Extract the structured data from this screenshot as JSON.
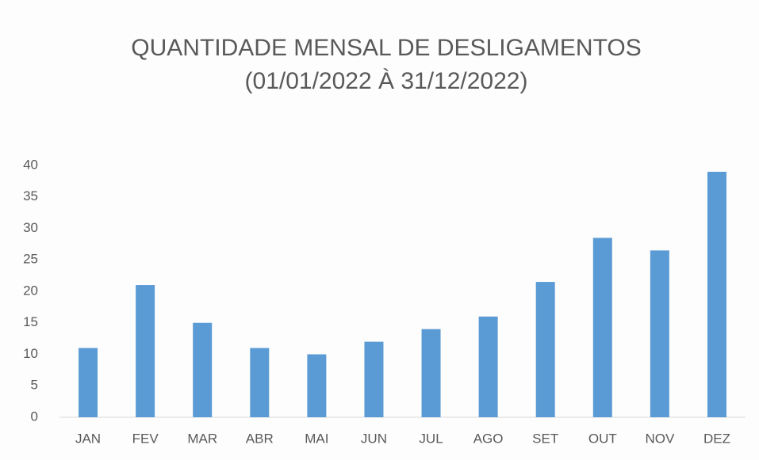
{
  "chart_data": {
    "type": "bar",
    "title": "QUANTIDADE MENSAL DE DESLIGAMENTOS",
    "subtitle": "(01/01/2022 À 31/12/2022)",
    "categories": [
      "JAN",
      "FEV",
      "MAR",
      "ABR",
      "MAI",
      "JUN",
      "JUL",
      "AGO",
      "SET",
      "OUT",
      "NOV",
      "DEZ"
    ],
    "values": [
      11,
      21,
      15,
      11,
      10,
      12,
      14,
      16,
      21.5,
      28.5,
      26.5,
      39
    ],
    "color": "#5b9bd5",
    "ylim": [
      0,
      40
    ],
    "yticks": [
      0,
      5,
      10,
      15,
      20,
      25,
      30,
      35,
      40
    ],
    "grid": false
  }
}
